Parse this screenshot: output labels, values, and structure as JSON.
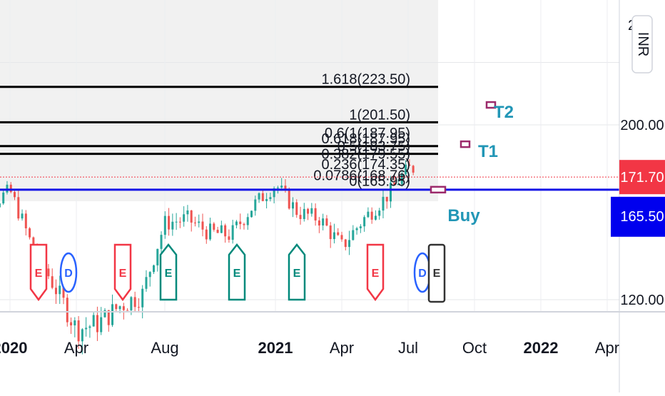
{
  "currency": "INR",
  "colors": {
    "support_line": "#1515e6",
    "current_price_bg": "#f23645",
    "support_price_bg": "#0000ee",
    "candle_up": "#26a69a",
    "candle_down": "#ef5350",
    "target_text": "#2196b6",
    "target_marker": "#9c2a6b",
    "earnings_red": "#f23645",
    "earnings_teal": "#00897b",
    "dividend_blue": "#2962ff",
    "split_dark": "#333333"
  },
  "chart_data": {
    "type": "candlestick",
    "y_axis": {
      "scale": "log",
      "ticks": [
        "120.00",
        "200.00"
      ],
      "partial_top_tick": "2",
      "range": [
        114,
        250
      ]
    },
    "x_axis": {
      "ticks": [
        "2020",
        "Apr",
        "Aug",
        "2021",
        "Apr",
        "Jul",
        "Oct",
        "2022",
        "Apr"
      ],
      "bold_ticks": [
        "2020",
        "2021",
        "2022"
      ]
    },
    "price_labels": {
      "current": "171.70",
      "support": "165.50"
    },
    "fibonacci_levels": [
      {
        "label": "1.618(223.50)",
        "value": 223.5
      },
      {
        "label": "1(201.50)",
        "value": 201.5
      },
      {
        "label": "0.618(187.95)",
        "value": 187.95
      },
      {
        "label": "0.5(183.75)",
        "value": 183.75
      },
      {
        "label": "0.382(179.55)",
        "value": 179.55
      },
      {
        "label": "0.236(174.35)",
        "value": 174.35
      },
      {
        "label": "0.0786(168.76)",
        "value": 168.76
      },
      {
        "label": "0(165.95)",
        "value": 165.95
      }
    ],
    "fib_overlap_text": "0.6(1(187.95)",
    "targets": [
      {
        "label": "T2",
        "value": 212
      },
      {
        "label": "T1",
        "value": 189
      }
    ],
    "entry": {
      "label": "Buy",
      "value": 165.5
    },
    "events": [
      {
        "letter": "E",
        "type": "earnings-negative",
        "date": "2020-02"
      },
      {
        "letter": "D",
        "type": "dividend",
        "date": "2020-03"
      },
      {
        "letter": "E",
        "type": "earnings-negative",
        "date": "2020-06"
      },
      {
        "letter": "E",
        "type": "earnings-positive",
        "date": "2020-08"
      },
      {
        "letter": "E",
        "type": "earnings-positive",
        "date": "2020-11"
      },
      {
        "letter": "E",
        "type": "earnings-positive",
        "date": "2021-02"
      },
      {
        "letter": "E",
        "type": "earnings-negative",
        "date": "2021-05"
      },
      {
        "letter": "D",
        "type": "dividend",
        "date": "2021-07"
      },
      {
        "letter": "E",
        "type": "earnings-upcoming",
        "date": "2021-08"
      }
    ],
    "approx_price_path": [
      [
        "2019-11",
        150
      ],
      [
        "2020-01",
        165
      ],
      [
        "2020-02",
        140
      ],
      [
        "2020-03",
        125
      ],
      [
        "2020-04",
        110
      ],
      [
        "2020-05",
        112
      ],
      [
        "2020-06",
        118
      ],
      [
        "2020-07",
        122
      ],
      [
        "2020-08",
        150
      ],
      [
        "2020-09",
        152
      ],
      [
        "2020-10",
        146
      ],
      [
        "2020-11",
        145
      ],
      [
        "2020-12",
        158
      ],
      [
        "2021-01",
        168
      ],
      [
        "2021-02",
        155
      ],
      [
        "2021-03",
        152
      ],
      [
        "2021-04",
        140
      ],
      [
        "2021-05",
        152
      ],
      [
        "2021-06",
        162
      ],
      [
        "2021-07",
        176
      ]
    ]
  }
}
